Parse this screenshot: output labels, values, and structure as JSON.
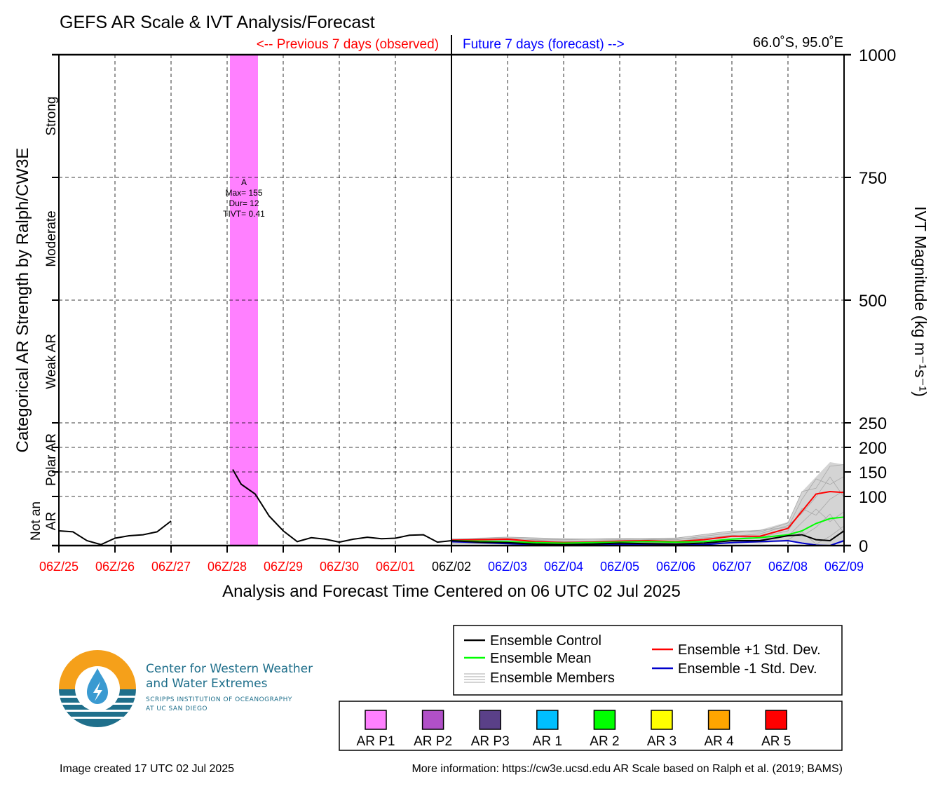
{
  "title": "GEFS AR Scale & IVT Analysis/Forecast",
  "header": {
    "previous_label": "<-- Previous 7 days (observed)",
    "future_label": "Future 7 days (forecast) -->",
    "location": "66.0˚S, 95.0˚E"
  },
  "colors": {
    "observed": "#ff0000",
    "forecast": "#0000ff",
    "control": "#000000",
    "mean": "#00ff00",
    "plus_std": "#ff0000",
    "minus_std": "#0000cc",
    "members": "#a8a8a8",
    "ar_event": "#ff80ff",
    "logo_orange": "#f5a01a",
    "logo_teal": "#1f6f8b"
  },
  "chart_data": {
    "type": "line",
    "title": "GEFS AR Scale & IVT Analysis/Forecast",
    "xlabel": "Analysis and Forecast Time Centered on 06 UTC 02 Jul 2025",
    "ylabel_right": "IVT Magnitude (kg m⁻¹s⁻¹)",
    "ylabel_left": "Categorical AR Strength by Ralph/CW3E",
    "x_unit": "days relative to 06Z/02",
    "xlim": [
      -7,
      7
    ],
    "ylim": [
      0,
      1000
    ],
    "grid": true,
    "x_ticks": [
      {
        "x": -7,
        "label": "06Z/25",
        "period": "observed"
      },
      {
        "x": -6,
        "label": "06Z/26",
        "period": "observed"
      },
      {
        "x": -5,
        "label": "06Z/27",
        "period": "observed"
      },
      {
        "x": -4,
        "label": "06Z/28",
        "period": "observed"
      },
      {
        "x": -3,
        "label": "06Z/29",
        "period": "observed"
      },
      {
        "x": -2,
        "label": "06Z/30",
        "period": "observed"
      },
      {
        "x": -1,
        "label": "06Z/01",
        "period": "observed"
      },
      {
        "x": 0,
        "label": "06Z/02",
        "period": "current"
      },
      {
        "x": 1,
        "label": "06Z/03",
        "period": "forecast"
      },
      {
        "x": 2,
        "label": "06Z/04",
        "period": "forecast"
      },
      {
        "x": 3,
        "label": "06Z/05",
        "period": "forecast"
      },
      {
        "x": 4,
        "label": "06Z/06",
        "period": "forecast"
      },
      {
        "x": 5,
        "label": "06Z/07",
        "period": "forecast"
      },
      {
        "x": 6,
        "label": "06Z/08",
        "period": "forecast"
      },
      {
        "x": 7,
        "label": "06Z/09",
        "period": "forecast"
      }
    ],
    "y_ticks": [
      {
        "y": 0,
        "label": "0"
      },
      {
        "y": 100,
        "label": "100"
      },
      {
        "y": 150,
        "label": "150"
      },
      {
        "y": 200,
        "label": "200"
      },
      {
        "y": 250,
        "label": "250"
      },
      {
        "y": 500,
        "label": "500"
      },
      {
        "y": 750,
        "label": "750"
      },
      {
        "y": 1000,
        "label": "1000"
      }
    ],
    "categories_left": [
      {
        "label": "Not an AR",
        "lines": [
          "Not an",
          "AR"
        ],
        "ymin": 0,
        "ymax": 100
      },
      {
        "label": "Polar AR",
        "lines": [
          "Polar AR"
        ],
        "ymin": 100,
        "ymax": 250
      },
      {
        "label": "Weak AR",
        "lines": [
          "Weak AR"
        ],
        "ymin": 250,
        "ymax": 500
      },
      {
        "label": "Moderate",
        "lines": [
          "Moderate"
        ],
        "ymin": 500,
        "ymax": 750
      },
      {
        "label": "Strong",
        "lines": [
          "Strong"
        ],
        "ymin": 750,
        "ymax": 1000
      }
    ],
    "ar_events": [
      {
        "x_start": -3.95,
        "x_end": -3.45,
        "category": "AR P1",
        "color": "#ff80ff",
        "lines": [
          "A",
          "Max= 155",
          "Dur= 12",
          "TIVT= 0.41"
        ]
      }
    ],
    "observed_segments": [
      {
        "x": [
          -7,
          -6.75,
          -6.5,
          -6.25,
          -6,
          -5.75,
          -5.5,
          -5.25,
          -5
        ],
        "y": [
          30,
          28,
          10,
          2,
          15,
          20,
          22,
          28,
          50
        ]
      },
      {
        "x": [
          -3.9,
          -3.75,
          -3.5,
          -3.25,
          -3,
          -2.75,
          -2.5,
          -2.25,
          -2,
          -1.75,
          -1.5,
          -1.25,
          -1,
          -0.75,
          -0.5,
          -0.25,
          0
        ],
        "y": [
          155,
          125,
          105,
          60,
          30,
          8,
          16,
          13,
          7,
          13,
          17,
          14,
          15,
          21,
          22,
          7,
          10
        ]
      }
    ],
    "series": [
      {
        "name": "Ensemble Control",
        "color": "#000000",
        "x": [
          0,
          0.5,
          1,
          1.5,
          2,
          2.5,
          3,
          3.5,
          4,
          4.5,
          5,
          5.5,
          6,
          6.25,
          6.5,
          6.75,
          7
        ],
        "y": [
          10,
          7,
          6,
          3,
          2,
          3,
          5,
          4,
          3,
          5,
          10,
          10,
          20,
          22,
          12,
          10,
          30
        ]
      },
      {
        "name": "Ensemble Mean",
        "color": "#00ff00",
        "x": [
          0,
          0.5,
          1,
          1.5,
          2,
          2.5,
          3,
          3.5,
          4,
          4.5,
          5,
          5.5,
          6,
          6.25,
          6.5,
          6.75,
          7
        ],
        "y": [
          10,
          9,
          8,
          6,
          5,
          6,
          7,
          8,
          7,
          8,
          13,
          16,
          22,
          30,
          45,
          55,
          58
        ]
      },
      {
        "name": "Ensemble +1 Std. Dev.",
        "color": "#ff0000",
        "x": [
          0,
          0.5,
          1,
          1.5,
          2,
          2.5,
          3,
          3.5,
          4,
          4.5,
          5,
          5.5,
          6,
          6.25,
          6.5,
          6.75,
          7
        ],
        "y": [
          11,
          12,
          13,
          8,
          6,
          7,
          9,
          10,
          8,
          12,
          19,
          19,
          35,
          70,
          105,
          110,
          108
        ]
      },
      {
        "name": "Ensemble -1 Std. Dev.",
        "color": "#0000cc",
        "x": [
          0,
          0.5,
          1,
          1.5,
          2,
          2.5,
          3,
          3.5,
          4,
          4.5,
          5,
          5.5,
          6,
          6.25,
          6.5,
          6.75,
          7
        ],
        "y": [
          8,
          6,
          4,
          2,
          1,
          1,
          2,
          2,
          1,
          2,
          6,
          8,
          10,
          5,
          1,
          0,
          10
        ]
      }
    ],
    "members_envelope": {
      "x": [
        0,
        1,
        2,
        3,
        4,
        5,
        5.5,
        6,
        6.25,
        6.5,
        6.75,
        7
      ],
      "y_low": [
        4,
        2,
        0,
        0,
        0,
        3,
        5,
        8,
        5,
        3,
        2,
        5
      ],
      "y_high": [
        14,
        18,
        14,
        15,
        16,
        30,
        32,
        48,
        110,
        140,
        170,
        165
      ]
    },
    "legend": {
      "entries": [
        {
          "label": "Ensemble Control",
          "color": "#000000",
          "style": "line"
        },
        {
          "label": "Ensemble Mean",
          "color": "#00ff00",
          "style": "line"
        },
        {
          "label": "Ensemble Members",
          "color": "#a8a8a8",
          "style": "multiline"
        },
        {
          "label": "Ensemble +1 Std. Dev.",
          "color": "#ff0000",
          "style": "line"
        },
        {
          "label": "Ensemble -1 Std. Dev.",
          "color": "#0000cc",
          "style": "line"
        }
      ],
      "placement": "bottom-right"
    },
    "ar_scale_legend": [
      {
        "label": "AR P1",
        "color": "#ff80ff"
      },
      {
        "label": "AR P2",
        "color": "#b150c8"
      },
      {
        "label": "AR P3",
        "color": "#5a4088"
      },
      {
        "label": "AR 1",
        "color": "#00bfff"
      },
      {
        "label": "AR 2",
        "color": "#00ff00"
      },
      {
        "label": "AR 3",
        "color": "#ffff00"
      },
      {
        "label": "AR 4",
        "color": "#ffa500"
      },
      {
        "label": "AR 5",
        "color": "#ff0000"
      }
    ]
  },
  "logo": {
    "line1": "Center for Western Weather",
    "line2": "and Water Extremes",
    "line3": "SCRIPPS INSTITUTION OF OCEANOGRAPHY",
    "line4": "AT UC SAN DIEGO"
  },
  "footer": {
    "created": "Image created 17 UTC 02 Jul 2025",
    "more_info": "More information: https://cw3e.ucsd.edu AR Scale based on Ralph et al. (2019; BAMS)"
  }
}
